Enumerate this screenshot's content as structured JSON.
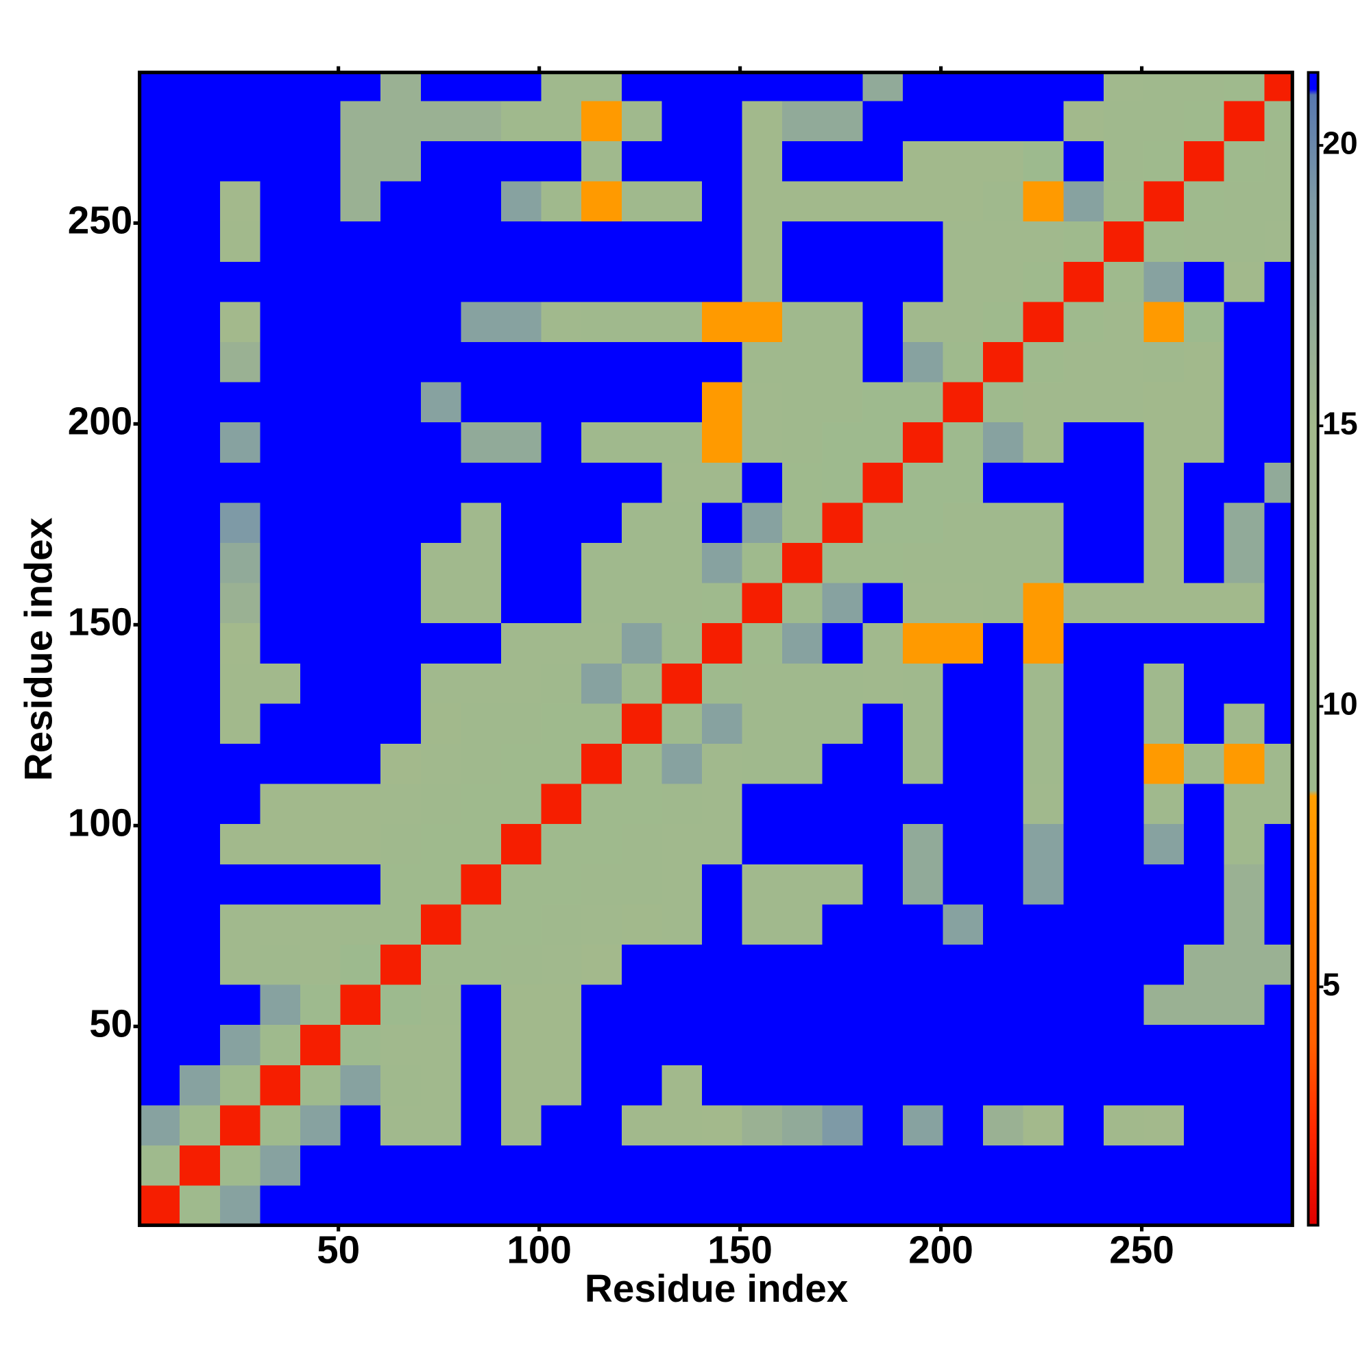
{
  "chart_data": {
    "type": "heatmap",
    "x_label": "Residue index",
    "y_label": "Residue index",
    "bins": [
      0.5,
      10.5,
      20.5,
      30.5,
      40.5,
      50.5,
      60.5,
      70.5,
      80.5,
      90.5,
      100.5,
      110.5,
      120.5,
      130.5,
      140.5,
      150.5,
      160.5,
      170.5,
      180.5,
      190.5,
      200.5,
      210.5,
      220.5,
      230.5,
      240.5,
      250.5,
      260.5,
      270.5,
      280.5,
      287.5
    ],
    "xlim": [
      0.5,
      287.5
    ],
    "ylim": [
      0.5,
      287.5
    ],
    "xticks": [
      50,
      100,
      150,
      200,
      250
    ],
    "yticks": [
      50,
      100,
      150,
      200,
      250
    ],
    "zlim": [
      0.75,
      21.3
    ],
    "colorbar_ticks": [
      5,
      10,
      15,
      20
    ],
    "colorscale": [
      [
        0.75,
        "#e00000"
      ],
      [
        2.5,
        "#ff2a00"
      ],
      [
        4,
        "#ff6000"
      ],
      [
        8.4,
        "#ffa000"
      ],
      [
        8.5,
        "#9dba8e"
      ],
      [
        15,
        "#a3b98c"
      ],
      [
        19,
        "#7e9aa6"
      ],
      [
        20.9,
        "#5878b0"
      ],
      [
        21,
        "#0000ff"
      ],
      [
        21.3,
        "#0000ff"
      ]
    ],
    "z": [
      [
        2,
        11,
        18,
        21,
        21,
        21,
        21,
        21,
        21,
        21,
        21,
        21,
        21,
        21,
        21,
        21,
        21,
        21,
        21,
        21,
        21,
        21,
        21,
        21,
        21,
        21,
        21,
        21,
        21
      ],
      [
        11,
        2,
        11,
        18,
        21,
        21,
        21,
        21,
        21,
        21,
        21,
        21,
        21,
        21,
        21,
        21,
        21,
        21,
        21,
        21,
        21,
        21,
        21,
        21,
        21,
        21,
        21,
        21,
        21
      ],
      [
        18,
        11,
        2,
        11,
        18,
        21,
        13,
        13,
        21,
        14,
        21,
        21,
        14,
        14,
        15,
        16,
        17,
        19,
        21,
        18,
        21,
        16,
        15,
        21,
        14,
        15,
        21,
        21,
        21
      ],
      [
        21,
        18,
        11,
        2,
        11,
        18,
        12,
        13,
        21,
        14,
        14,
        21,
        21,
        14,
        21,
        21,
        21,
        21,
        21,
        21,
        21,
        21,
        21,
        21,
        21,
        21,
        21,
        21,
        21
      ],
      [
        21,
        21,
        18,
        11,
        2,
        10,
        13,
        13,
        21,
        14,
        14,
        21,
        21,
        21,
        21,
        21,
        21,
        21,
        21,
        21,
        21,
        21,
        21,
        21,
        21,
        21,
        21,
        21,
        21
      ],
      [
        21,
        21,
        21,
        18,
        10,
        2,
        9,
        12,
        21,
        14,
        14,
        21,
        21,
        21,
        21,
        21,
        21,
        21,
        21,
        21,
        21,
        21,
        21,
        21,
        21,
        16,
        16,
        16,
        21
      ],
      [
        21,
        21,
        13,
        12,
        13,
        9,
        2,
        11,
        11,
        12,
        13,
        15,
        21,
        21,
        21,
        21,
        21,
        21,
        21,
        21,
        21,
        21,
        21,
        21,
        21,
        21,
        16,
        16,
        16
      ],
      [
        21,
        21,
        13,
        13,
        13,
        12,
        11,
        2,
        11,
        11,
        12,
        13,
        14,
        13,
        21,
        13,
        13,
        21,
        21,
        21,
        18,
        21,
        21,
        21,
        21,
        21,
        21,
        16,
        21
      ],
      [
        21,
        21,
        21,
        21,
        21,
        21,
        11,
        11,
        2,
        11,
        11,
        12,
        12,
        13,
        21,
        13,
        13,
        13,
        21,
        17,
        21,
        21,
        18,
        21,
        21,
        21,
        21,
        16,
        21
      ],
      [
        21,
        21,
        14,
        14,
        14,
        14,
        12,
        11,
        11,
        2,
        11,
        11,
        12,
        13,
        13,
        21,
        21,
        21,
        21,
        17,
        21,
        21,
        18,
        21,
        21,
        18,
        21,
        12,
        21
      ],
      [
        21,
        21,
        21,
        14,
        14,
        14,
        13,
        12,
        11,
        11,
        2,
        11,
        11,
        12,
        13,
        21,
        21,
        21,
        21,
        21,
        21,
        21,
        13,
        21,
        21,
        12,
        21,
        12,
        12
      ],
      [
        21,
        21,
        21,
        21,
        21,
        21,
        15,
        13,
        12,
        11,
        11,
        2,
        11,
        18,
        13,
        12,
        12,
        21,
        21,
        12,
        21,
        21,
        12,
        21,
        21,
        8,
        12,
        8,
        12
      ],
      [
        21,
        21,
        14,
        21,
        21,
        21,
        21,
        14,
        12,
        12,
        11,
        11,
        2,
        11,
        18,
        12,
        12,
        12,
        21,
        12,
        21,
        21,
        12,
        21,
        21,
        12,
        21,
        12,
        21
      ],
      [
        21,
        21,
        14,
        14,
        21,
        21,
        21,
        13,
        13,
        13,
        12,
        18,
        11,
        2,
        11,
        12,
        12,
        12,
        13,
        12,
        21,
        21,
        12,
        21,
        21,
        12,
        21,
        21,
        21
      ],
      [
        21,
        21,
        15,
        21,
        21,
        21,
        21,
        21,
        21,
        13,
        13,
        13,
        18,
        11,
        2,
        11,
        18,
        21,
        13,
        8,
        8,
        21,
        8,
        21,
        21,
        21,
        21,
        21,
        21
      ],
      [
        21,
        21,
        16,
        21,
        21,
        21,
        21,
        13,
        13,
        21,
        21,
        12,
        12,
        12,
        11,
        2,
        11,
        18,
        21,
        13,
        13,
        12,
        8,
        14,
        14,
        14,
        14,
        14,
        21
      ],
      [
        21,
        21,
        17,
        21,
        21,
        21,
        21,
        13,
        13,
        21,
        21,
        12,
        12,
        12,
        18,
        11,
        2,
        11,
        11,
        12,
        12,
        12,
        12,
        21,
        21,
        14,
        21,
        17,
        21
      ],
      [
        21,
        21,
        19,
        21,
        21,
        21,
        21,
        21,
        13,
        21,
        21,
        21,
        12,
        12,
        21,
        18,
        11,
        2,
        10,
        10,
        12,
        12,
        12,
        21,
        21,
        14,
        21,
        17,
        21
      ],
      [
        21,
        21,
        21,
        21,
        21,
        21,
        21,
        21,
        21,
        21,
        21,
        21,
        21,
        13,
        13,
        21,
        11,
        10,
        2,
        10,
        10,
        21,
        21,
        21,
        21,
        14,
        21,
        21,
        17
      ],
      [
        21,
        21,
        18,
        21,
        21,
        21,
        21,
        21,
        17,
        17,
        21,
        12,
        12,
        12,
        8,
        13,
        12,
        10,
        10,
        2,
        10,
        18,
        13,
        21,
        21,
        14,
        14,
        21,
        21
      ],
      [
        21,
        21,
        21,
        21,
        21,
        21,
        21,
        18,
        21,
        21,
        21,
        21,
        21,
        21,
        8,
        13,
        12,
        12,
        10,
        10,
        2,
        11,
        13,
        13,
        13,
        14,
        14,
        21,
        21
      ],
      [
        21,
        21,
        16,
        21,
        21,
        21,
        21,
        21,
        21,
        21,
        21,
        21,
        21,
        21,
        21,
        12,
        12,
        12,
        21,
        18,
        11,
        2,
        11,
        13,
        13,
        12,
        14,
        21,
        21
      ],
      [
        21,
        21,
        15,
        21,
        21,
        21,
        21,
        21,
        18,
        18,
        13,
        12,
        12,
        12,
        8,
        8,
        12,
        12,
        21,
        13,
        13,
        11,
        2,
        11,
        13,
        8,
        9,
        21,
        21
      ],
      [
        21,
        21,
        21,
        21,
        21,
        21,
        21,
        21,
        21,
        21,
        21,
        21,
        21,
        21,
        21,
        14,
        21,
        21,
        21,
        21,
        13,
        13,
        11,
        2,
        11,
        18,
        21,
        14,
        21
      ],
      [
        21,
        21,
        14,
        21,
        21,
        21,
        21,
        21,
        21,
        21,
        21,
        21,
        21,
        21,
        21,
        14,
        21,
        21,
        21,
        21,
        13,
        13,
        13,
        11,
        2,
        11,
        12,
        12,
        13
      ],
      [
        21,
        21,
        15,
        21,
        21,
        16,
        21,
        21,
        21,
        18,
        12,
        8,
        12,
        12,
        21,
        14,
        14,
        14,
        14,
        14,
        14,
        12,
        8,
        18,
        11,
        2,
        11,
        12,
        12
      ],
      [
        21,
        21,
        21,
        21,
        21,
        16,
        16,
        21,
        21,
        21,
        21,
        12,
        21,
        21,
        21,
        14,
        21,
        21,
        21,
        14,
        14,
        14,
        9,
        21,
        12,
        11,
        2,
        11,
        12
      ],
      [
        21,
        21,
        21,
        21,
        21,
        16,
        16,
        16,
        16,
        12,
        12,
        8,
        12,
        21,
        21,
        14,
        17,
        17,
        21,
        21,
        21,
        21,
        21,
        14,
        12,
        12,
        11,
        2,
        11
      ],
      [
        21,
        21,
        21,
        21,
        21,
        21,
        16,
        21,
        21,
        21,
        12,
        12,
        21,
        21,
        21,
        21,
        21,
        21,
        17,
        21,
        21,
        21,
        21,
        21,
        13,
        12,
        12,
        11,
        2
      ]
    ]
  }
}
